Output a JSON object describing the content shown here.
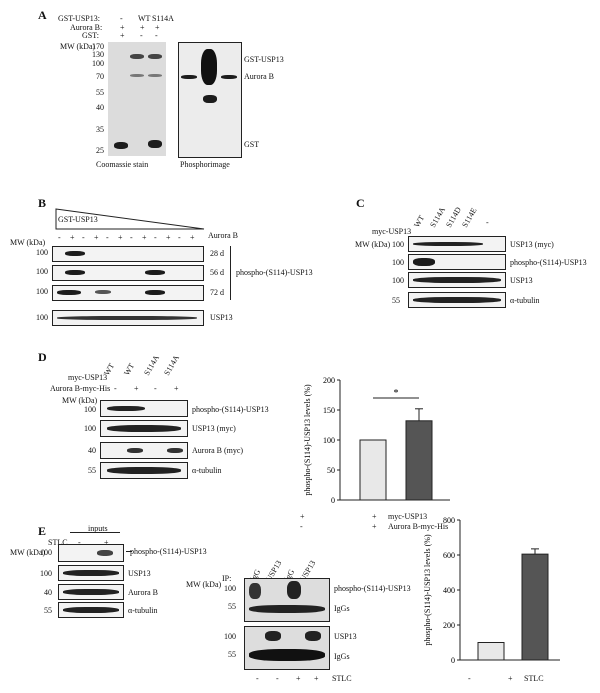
{
  "panelA": {
    "label": "A",
    "rows": [
      "GST-USP13:",
      "Aurora B:",
      "GST:"
    ],
    "lane_headers": [
      "-",
      "WT",
      "S114A"
    ],
    "row_marks": [
      [
        "-",
        "+",
        "+"
      ],
      [
        "+",
        "+",
        "+"
      ],
      [
        "+",
        "-",
        "-"
      ]
    ],
    "mw_title": "MW (kDa)",
    "mw": [
      "170",
      "130",
      "100",
      "70",
      "55",
      "40",
      "35",
      "25"
    ],
    "right_labels": [
      "GST-USP13",
      "Aurora B",
      "GST"
    ],
    "captions": [
      "Coomassie stain",
      "Phosphorimage"
    ]
  },
  "panelB": {
    "label": "B",
    "triangle_label": "GST-USP13",
    "aurora_label": "Aurora B",
    "mw_title": "MW (kDa)",
    "aurora_marks": [
      "-",
      "+",
      "-",
      "+",
      "-",
      "+",
      "-",
      "+",
      "-",
      "+",
      "-",
      "+"
    ],
    "mw": [
      "100",
      "100",
      "100",
      "100"
    ],
    "day_labels": [
      "28 d",
      "56 d",
      "72 d"
    ],
    "phospho_label": "phospho-(S114)-USP13",
    "usp13_label": "USP13"
  },
  "panelC": {
    "label": "C",
    "myc_label": "myc-USP13",
    "lanes": [
      "WT",
      "S114A",
      "S114D",
      "S114E",
      "-"
    ],
    "mw_title": "MW (kDa)",
    "mw": [
      "100",
      "100",
      "100",
      "55"
    ],
    "blot_labels": [
      "USP13 (myc)",
      "phospho-(S114)-USP13",
      "USP13",
      "α-tubulin"
    ]
  },
  "panelD": {
    "label": "D",
    "myc_label": "myc-USP13",
    "lanes": [
      "WT",
      "WT",
      "S114A",
      "S114A"
    ],
    "aurora_label": "Aurora B-myc-His",
    "aurora_marks": [
      "-",
      "+",
      "-",
      "+"
    ],
    "mw_title": "MW (kDa)",
    "mw": [
      "100",
      "100",
      "40",
      "55"
    ],
    "blot_labels": [
      "phospho-(S114)-USP13",
      "USP13 (myc)",
      "Aurora B (myc)",
      "α-tubulin"
    ],
    "chart_ylabel": "phospho-(S114)-USP13 levels (%)",
    "chart_yticks": [
      "0",
      "50",
      "100",
      "150",
      "200"
    ],
    "significance": "*",
    "x_rows": [
      {
        "marks": [
          "+",
          "+"
        ],
        "label": "myc-USP13"
      },
      {
        "marks": [
          "-",
          "+"
        ],
        "label": "Aurora B-myc-His"
      }
    ]
  },
  "panelE": {
    "label": "E",
    "inputs_label": "inputs",
    "stlc_label": "STLC",
    "stlc_marks": [
      "-",
      "+"
    ],
    "mw_title": "MW (kDa)",
    "mw": [
      "100",
      "100",
      "40",
      "55"
    ],
    "blot_labels": [
      "phospho-(S114)-USP13",
      "USP13",
      "Aurora B",
      "α-tubulin"
    ],
    "ip_label": "IP:",
    "ip_lanes": [
      "IgG",
      "USP13",
      "IgG",
      "USP13"
    ],
    "ip_mw": [
      "100",
      "55",
      "100",
      "55"
    ],
    "ip_labels": [
      "phospho-(S114)-USP13",
      "IgGs",
      "USP13",
      "IgGs"
    ],
    "ip_stlc_marks": [
      "-",
      "-",
      "+",
      "+"
    ],
    "chart_ylabel": "phospho-(S114)-USP13 levels (%)",
    "chart_yticks": [
      "0",
      "200",
      "400",
      "600",
      "800"
    ],
    "x_marks": [
      "-",
      "+"
    ],
    "x_label": "STLC"
  },
  "chart_data": [
    {
      "type": "bar",
      "categories": [
        "myc-USP13 +, Aurora B-myc-His -",
        "myc-USP13 +, Aurora B-myc-His +"
      ],
      "values": [
        100,
        132
      ],
      "errors": [
        0,
        20
      ],
      "ylabel": "phospho-(S114)-USP13 levels (%)",
      "ylim": [
        0,
        200
      ],
      "colors": [
        "#e8e8e8",
        "#555555"
      ]
    },
    {
      "type": "bar",
      "categories": [
        "STLC -",
        "STLC +"
      ],
      "values": [
        100,
        605
      ],
      "errors": [
        0,
        30
      ],
      "ylabel": "phospho-(S114)-USP13 levels (%)",
      "ylim": [
        0,
        800
      ],
      "colors": [
        "#e8e8e8",
        "#555555"
      ]
    }
  ]
}
